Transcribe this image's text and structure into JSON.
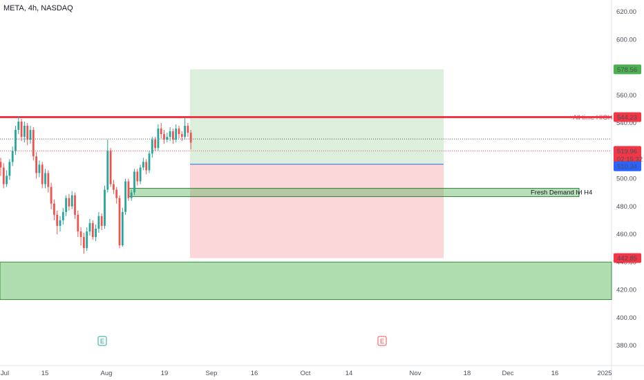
{
  "header": {
    "title": "META, 4h, NASDAQ"
  },
  "colors": {
    "up": "#26a69a",
    "down": "#ef5350",
    "ath": "#f23645",
    "entry": "#2962ff",
    "target": "#4caf50"
  },
  "chart_data": {
    "type": "candlestick",
    "title": "META, 4h, NASDAQ",
    "ylim": [
      368,
      630
    ],
    "y_ticks": [
      "620.00",
      "600.00",
      "580.00",
      "560.00",
      "540.00",
      "520.00",
      "500.00",
      "480.00",
      "460.00",
      "440.00",
      "420.00",
      "400.00",
      "380.00"
    ],
    "x_ticks": [
      "Jul",
      "15",
      "Aug",
      "19",
      "Sep",
      "16",
      "Oct",
      "14",
      "Nov",
      "18",
      "Dec",
      "16",
      "2025"
    ],
    "price_tags": {
      "target": "578.56",
      "ath": "544.23",
      "current": "519.96",
      "countdown": "02:15:32",
      "entry": "510.34",
      "stop": "442.85"
    },
    "annotations": {
      "ath_label": "All time HIGH",
      "demand_label": "Fresh Demand lvl H4"
    },
    "event_markers": [
      "E",
      "E"
    ],
    "candles": [
      [
        512,
        508,
        515,
        502
      ],
      [
        508,
        496,
        511,
        493
      ],
      [
        496,
        502,
        506,
        494
      ],
      [
        502,
        512,
        514,
        499
      ],
      [
        512,
        520,
        523,
        509
      ],
      [
        520,
        535,
        538,
        517
      ],
      [
        535,
        541,
        545,
        532
      ],
      [
        541,
        530,
        543,
        527
      ],
      [
        530,
        538,
        541,
        526
      ],
      [
        538,
        528,
        540,
        524
      ],
      [
        528,
        535,
        538,
        525
      ],
      [
        535,
        516,
        537,
        513
      ],
      [
        516,
        504,
        519,
        500
      ],
      [
        504,
        510,
        513,
        501
      ],
      [
        510,
        496,
        512,
        493
      ],
      [
        496,
        504,
        507,
        493
      ],
      [
        504,
        494,
        506,
        490
      ],
      [
        494,
        482,
        497,
        478
      ],
      [
        482,
        474,
        485,
        470
      ],
      [
        474,
        466,
        477,
        460
      ],
      [
        466,
        470,
        473,
        462
      ],
      [
        470,
        476,
        479,
        467
      ],
      [
        476,
        486,
        488,
        473
      ],
      [
        486,
        480,
        489,
        477
      ],
      [
        480,
        488,
        491,
        478
      ],
      [
        488,
        474,
        490,
        471
      ],
      [
        474,
        462,
        477,
        458
      ],
      [
        462,
        458,
        465,
        452
      ],
      [
        458,
        450,
        461,
        446
      ],
      [
        450,
        462,
        465,
        448
      ],
      [
        462,
        468,
        471,
        459
      ],
      [
        468,
        458,
        470,
        456
      ],
      [
        458,
        464,
        467,
        455
      ],
      [
        464,
        473,
        476,
        461
      ],
      [
        473,
        466,
        475,
        463
      ],
      [
        466,
        492,
        495,
        464
      ],
      [
        492,
        520,
        528,
        490
      ],
      [
        520,
        496,
        522,
        494
      ],
      [
        496,
        492,
        499,
        489
      ],
      [
        492,
        486,
        494,
        482
      ],
      [
        486,
        452,
        488,
        450
      ],
      [
        452,
        476,
        479,
        451
      ],
      [
        476,
        498,
        500,
        474
      ],
      [
        498,
        486,
        500,
        484
      ],
      [
        486,
        490,
        492,
        484
      ],
      [
        490,
        505,
        507,
        488
      ],
      [
        505,
        498,
        507,
        495
      ],
      [
        498,
        508,
        510,
        496
      ],
      [
        508,
        512,
        515,
        506
      ],
      [
        512,
        506,
        514,
        503
      ],
      [
        506,
        518,
        520,
        504
      ],
      [
        518,
        528,
        530,
        515
      ],
      [
        528,
        522,
        530,
        520
      ],
      [
        522,
        536,
        539,
        520
      ],
      [
        536,
        532,
        540,
        529
      ],
      [
        532,
        528,
        535,
        525
      ],
      [
        528,
        530,
        533,
        526
      ],
      [
        530,
        534,
        537,
        527
      ],
      [
        534,
        528,
        536,
        525
      ],
      [
        528,
        536,
        539,
        526
      ],
      [
        536,
        532,
        538,
        529
      ],
      [
        532,
        530,
        534,
        527
      ],
      [
        530,
        538,
        544,
        528
      ],
      [
        538,
        533,
        540,
        530
      ],
      [
        533,
        526,
        535,
        521
      ]
    ]
  }
}
